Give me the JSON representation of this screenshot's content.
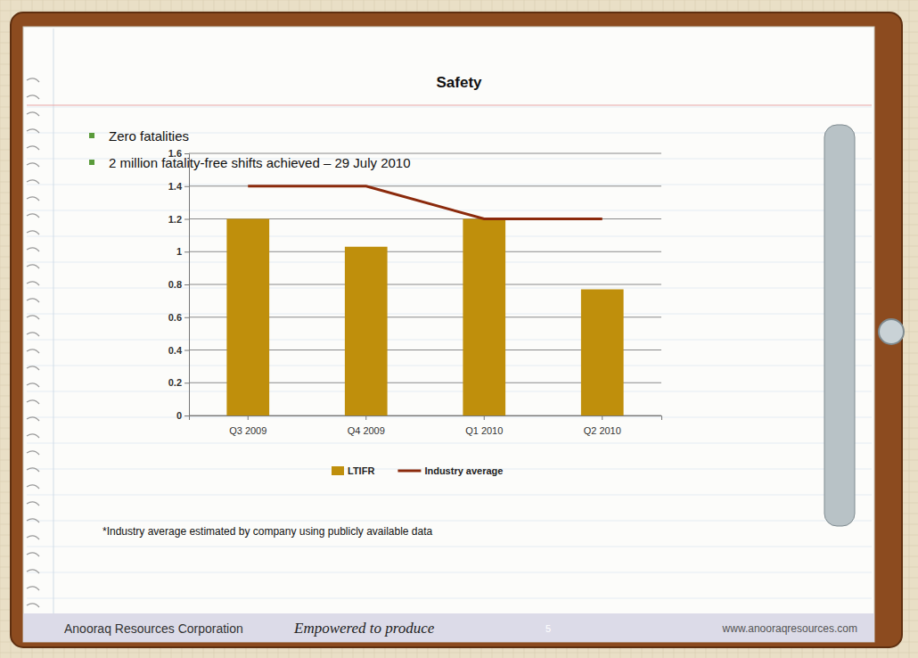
{
  "chart_data": {
    "type": "bar",
    "title": "Safety",
    "annotations": [
      "Zero fatalities",
      "2 million fatality-free shifts achieved – 29 July 2010",
      "*Industry average estimated by company using publicly available data"
    ],
    "categories": [
      "Q3 2009",
      "Q4 2009",
      "Q1 2010",
      "Q2 2010"
    ],
    "series": [
      {
        "name": "LTIFR",
        "type": "bar",
        "color": "#bf8f0c",
        "values": [
          1.2,
          1.03,
          1.2,
          0.77
        ]
      },
      {
        "name": "Industry average",
        "type": "line",
        "color": "#8b2a0c",
        "line_style": "solid",
        "values": [
          1.4,
          1.4,
          1.2,
          1.2
        ]
      }
    ],
    "ylim": [
      0,
      1.6
    ],
    "yticks": [
      0,
      0.2,
      0.4,
      0.6,
      0.8,
      1,
      1.2,
      1.4,
      1.6
    ],
    "grid": true,
    "legend": "bottom"
  },
  "footer": {
    "company": "Anooraq Resources Corporation",
    "tagline": "Empowered to produce",
    "page": 5,
    "url": "www.anooraqresources.com"
  }
}
